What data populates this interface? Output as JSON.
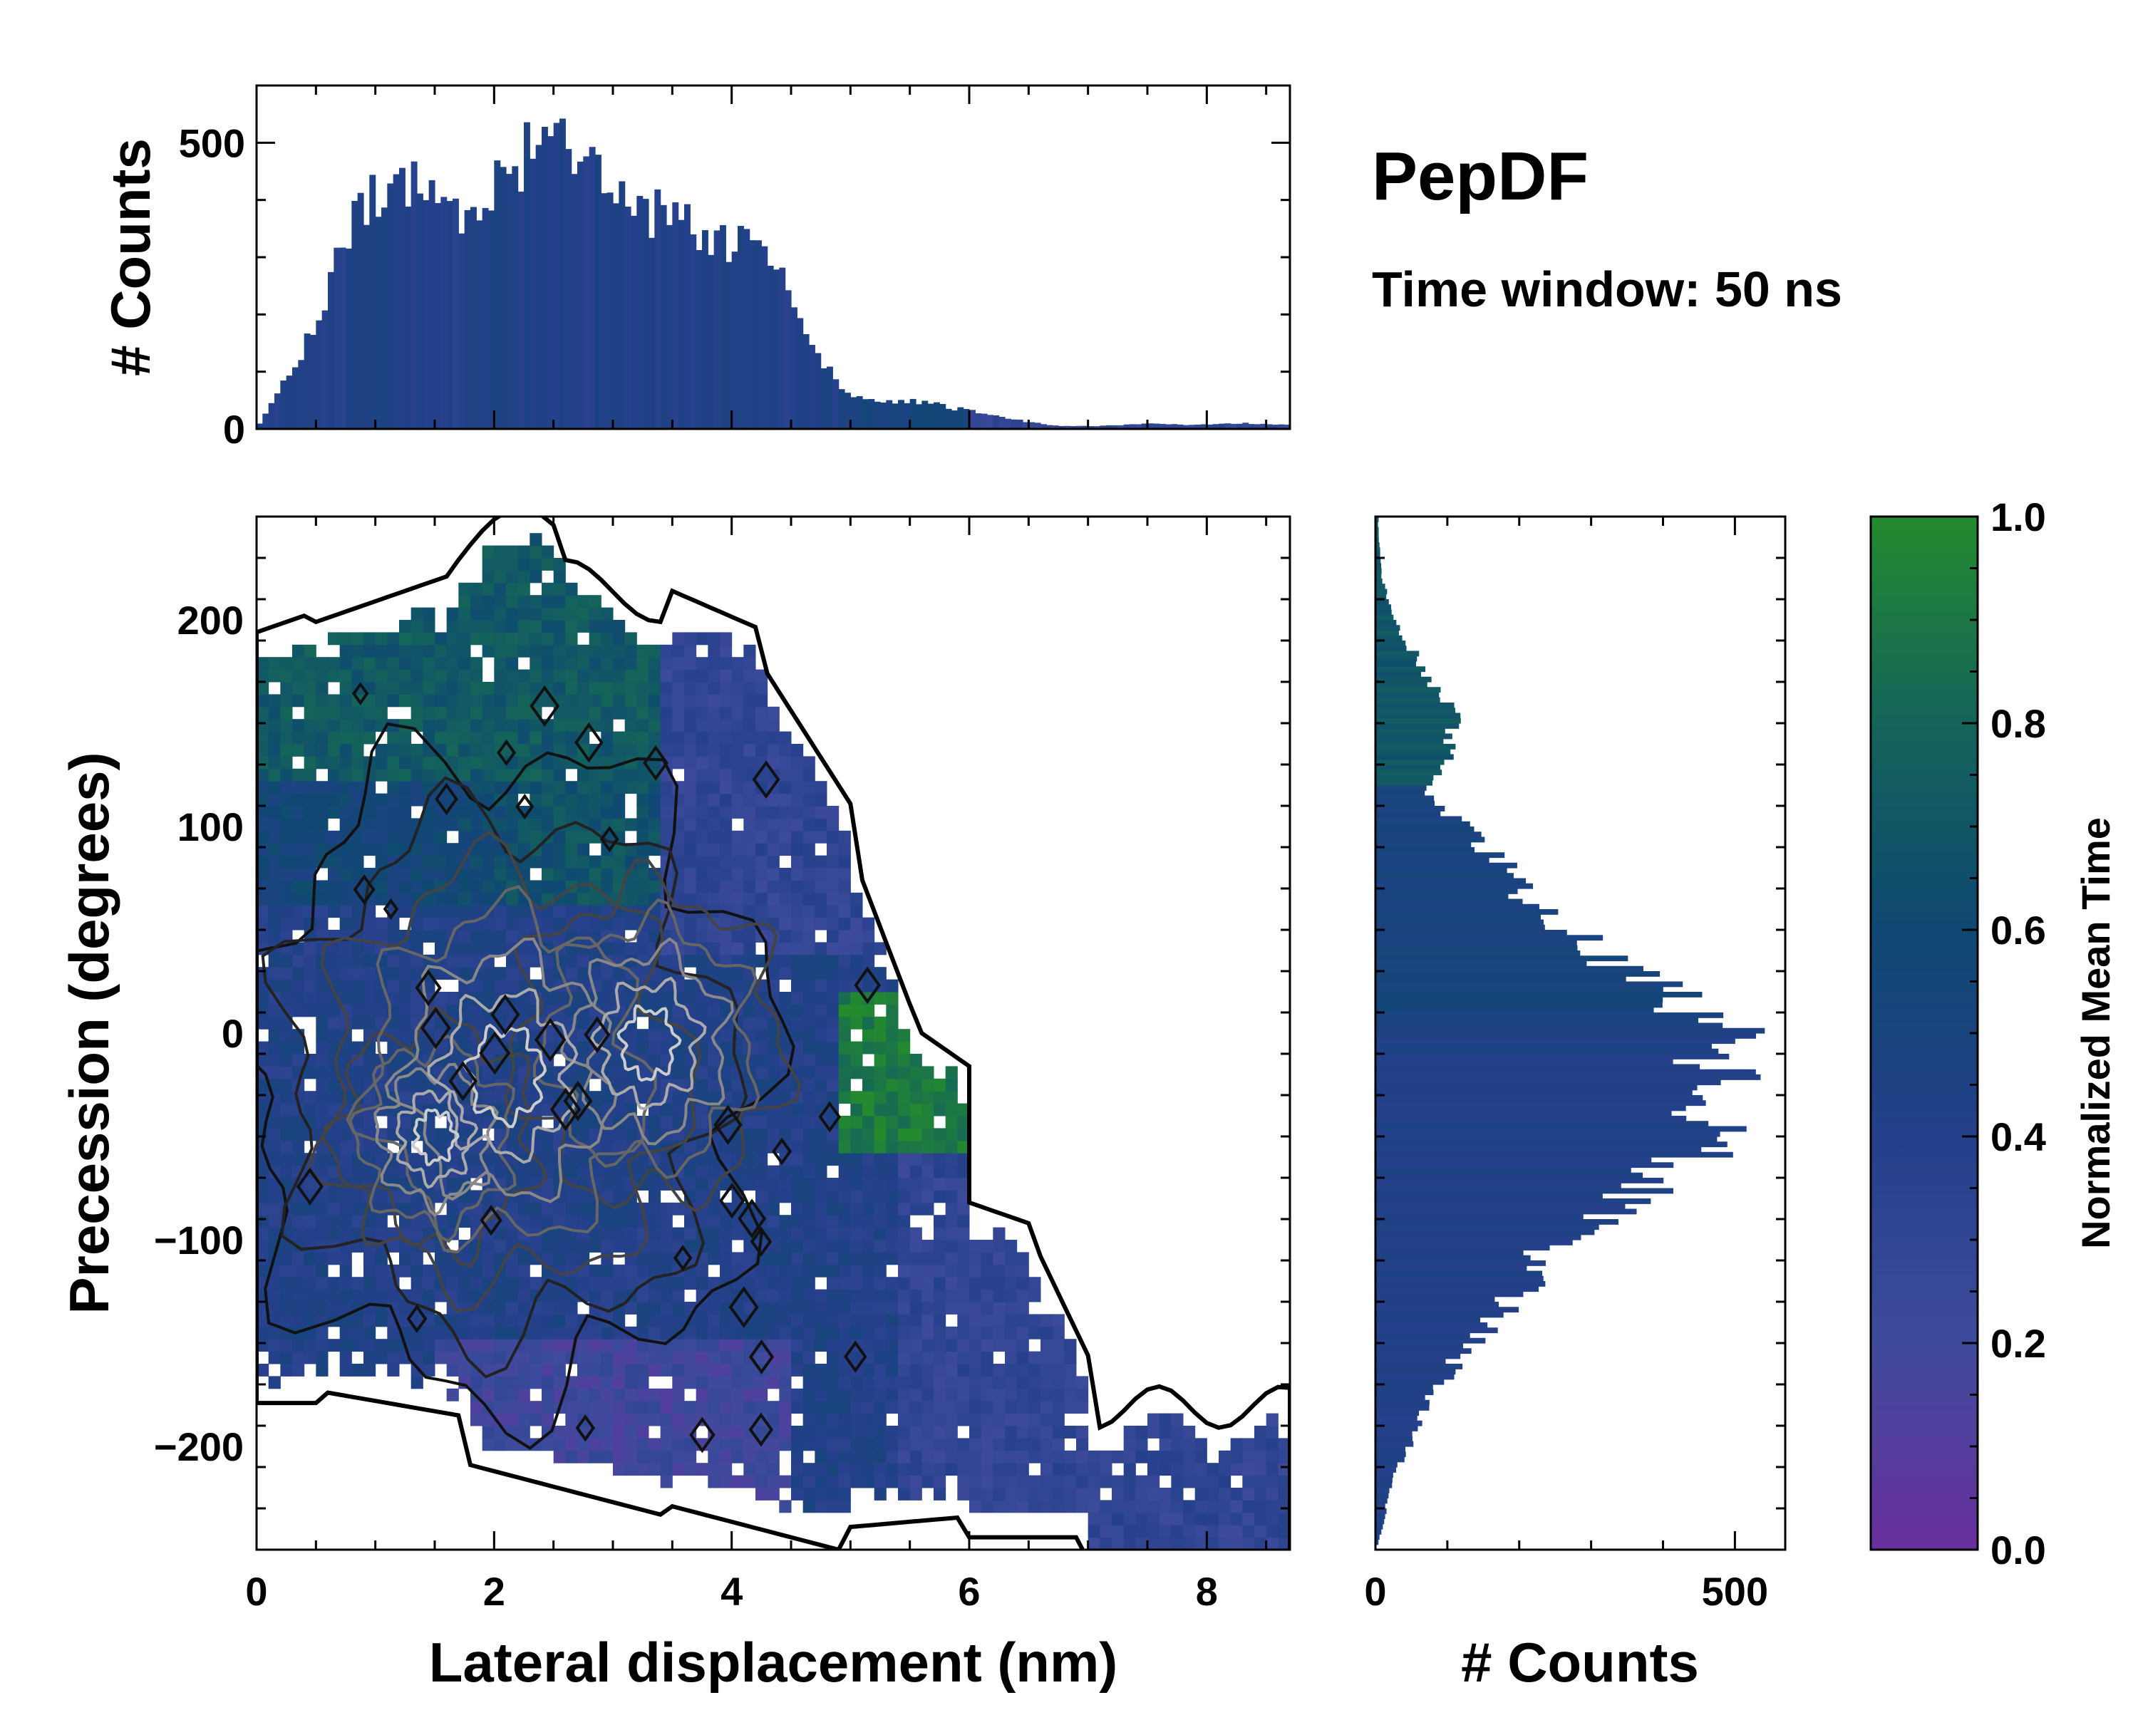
{
  "chart_data": [
    {
      "type": "heatmap",
      "panel": "main-2d-histogram",
      "xlabel": "Lateral displacement (nm)",
      "ylabel": "Precession (degrees)",
      "xlim": [
        0,
        8.7
      ],
      "ylim": [
        -250,
        250
      ],
      "x_ticks": [
        0,
        2,
        4,
        6,
        8
      ],
      "x_tick_labels": [
        "0",
        "2",
        "4",
        "6",
        "8"
      ],
      "y_ticks": [
        -200,
        -100,
        0,
        100,
        200
      ],
      "y_tick_labels": [
        "−200",
        "−100",
        "0",
        "100",
        "200"
      ],
      "color_meaning": "Normalized Mean Time",
      "contours": "density contours, black (outer) to light grey (inner)"
    },
    {
      "type": "bar",
      "panel": "top-histogram",
      "xlim": [
        0,
        8.7
      ],
      "ylim": [
        0,
        600
      ],
      "ylabel": "# Counts",
      "y_ticks": [
        0,
        500
      ],
      "y_tick_labels": [
        "0",
        "500"
      ],
      "x": [
        0.1,
        0.3,
        0.5,
        0.7,
        0.9,
        1.1,
        1.3,
        1.5,
        1.7,
        1.9,
        2.1,
        2.3,
        2.5,
        2.7,
        2.9,
        3.1,
        3.3,
        3.5,
        3.7,
        3.9,
        4.1,
        4.3,
        4.5,
        4.7,
        4.9,
        5.1,
        5.3,
        5.5,
        5.7,
        5.9,
        6.1,
        6.3,
        6.5,
        6.7,
        6.9,
        7.1,
        7.3,
        7.5,
        7.7,
        7.9,
        8.1,
        8.3,
        8.5
      ],
      "values": [
        40,
        110,
        180,
        300,
        390,
        430,
        420,
        400,
        380,
        410,
        430,
        490,
        500,
        480,
        440,
        410,
        380,
        370,
        350,
        330,
        320,
        290,
        230,
        150,
        70,
        50,
        45,
        50,
        45,
        35,
        28,
        20,
        12,
        6,
        5,
        5,
        7,
        10,
        8,
        7,
        9,
        10,
        8
      ]
    },
    {
      "type": "bar",
      "panel": "right-histogram",
      "orientation": "horizontal",
      "xlabel": "# Counts",
      "x_ticks": [
        0,
        500
      ],
      "x_tick_labels": [
        "0",
        "500"
      ],
      "xlim": [
        0,
        570
      ],
      "y": [
        -240,
        -220,
        -200,
        -180,
        -160,
        -140,
        -120,
        -100,
        -80,
        -60,
        -40,
        -20,
        0,
        20,
        40,
        60,
        80,
        100,
        120,
        140,
        160,
        180,
        200,
        220,
        240
      ],
      "values": [
        10,
        20,
        45,
        70,
        110,
        160,
        210,
        250,
        360,
        440,
        470,
        480,
        490,
        420,
        300,
        230,
        180,
        120,
        70,
        110,
        100,
        60,
        25,
        10,
        4
      ]
    },
    {
      "type": "colorbar",
      "label": "Normalized Mean Time",
      "range": [
        0,
        1
      ],
      "ticks": [
        0.0,
        0.2,
        0.4,
        0.6,
        0.8,
        1.0
      ],
      "tick_labels": [
        "0.0",
        "0.2",
        "0.4",
        "0.6",
        "0.8",
        "1.0"
      ],
      "colors": [
        "#6a2f9e",
        "#3e4b9c",
        "#24408a",
        "#0f4872",
        "#14645a",
        "#248a2e"
      ]
    }
  ],
  "annotations": {
    "title": "PepDF",
    "subtitle": "Time window: 50 ns"
  }
}
